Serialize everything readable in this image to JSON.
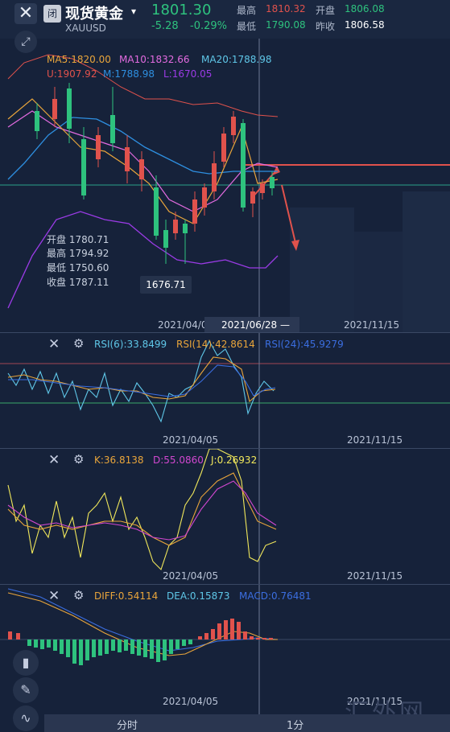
{
  "header": {
    "close_icon": "✕",
    "status_badge": "闭",
    "title": "现货黄金",
    "caret": "▾",
    "symbol": "XAUUSD",
    "price": "1801.30",
    "change": "-5.28",
    "change_pct": "-0.29%",
    "quote": {
      "high_label": "最高",
      "high_value": "1810.32",
      "open_label": "开盘",
      "open_value": "1806.08",
      "low_label": "最低",
      "low_value": "1790.08",
      "prev_label": "昨收",
      "prev_value": "1806.58"
    },
    "colors": {
      "up": "#2ec27e",
      "down": "#e0524c"
    }
  },
  "main_chart": {
    "ma5": "MA5:1820.00",
    "ma10": "MA10:1832.66",
    "ma20": "MA20:1788.98",
    "boll_u": "U:1907.92",
    "boll_m": "M:1788.98",
    "boll_l": "L:1670.05",
    "ohlc": {
      "open": "开盘 1780.71",
      "high": "最高 1794.92",
      "low": "最低 1750.60",
      "close": "收盘 1787.11"
    },
    "low_marker": "1676.71",
    "dates": {
      "left": "2021/04/0",
      "crosshair": "2021/06/28 —",
      "right": "2021/11/15"
    }
  },
  "rsi_panel": {
    "rsi6": "RSI(6):33.8499",
    "rsi14": "RSI(14):42.8614",
    "rsi24": "RSI(24):45.9279",
    "date_left": "2021/04/05",
    "date_right": "2021/11/15"
  },
  "kdj_panel": {
    "k": "K:36.8138",
    "d": "D:55.0860",
    "j": "J:0.26932",
    "date_left": "2021/04/05",
    "date_right": "2021/11/15"
  },
  "macd_panel": {
    "diff": "DIFF:0.54114",
    "dea": "DEA:0.15873",
    "macd": "MACD:0.76481",
    "date_left": "2021/04/05",
    "date_right": "2021/11/15"
  },
  "bottom_tabs": {
    "timeshare": "分时",
    "one_min": "1分"
  },
  "sidebar_icons": [
    "candlestick-icon",
    "pen-icon",
    "chart-line-icon"
  ],
  "watermark": "汇外网"
}
